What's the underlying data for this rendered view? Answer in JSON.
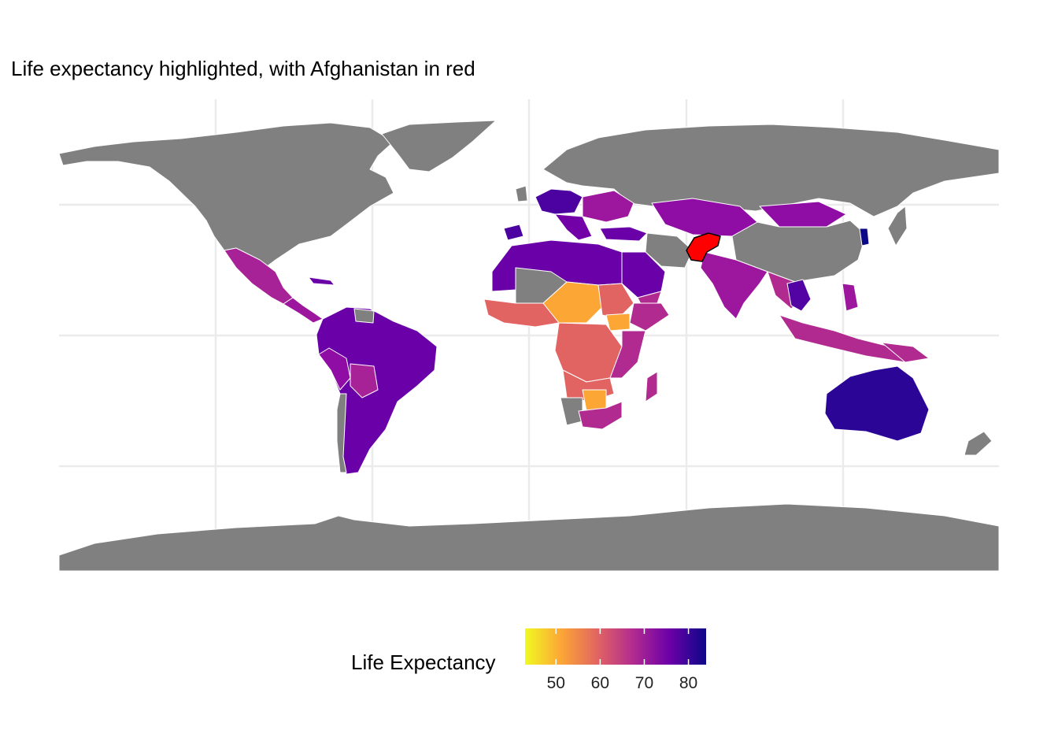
{
  "title": "Life expectancy highlighted, with Afghanistan in red",
  "map": {
    "highlighted_country": "Afghanistan",
    "highlight_color": "#ff0000",
    "no_data_color": "#808080",
    "country_border_color": "#ffffff",
    "gridline_color": "#ebebeb",
    "background_color": "#ffffff"
  },
  "legend": {
    "title": "Life Expectancy",
    "position": "bottom",
    "palette": "plasma",
    "range": [
      43,
      84
    ],
    "ticks": [
      "50",
      "60",
      "70",
      "80"
    ],
    "tick_values": [
      50,
      60,
      70,
      80
    ],
    "colors": [
      "#f0f921",
      "#fca636",
      "#e16462",
      "#b12a90",
      "#6a00a8",
      "#0d0887"
    ]
  }
}
